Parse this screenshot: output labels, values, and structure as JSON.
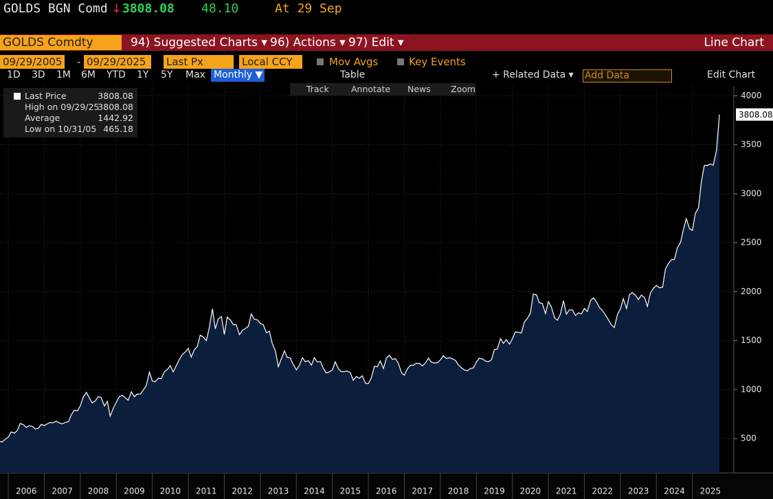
{
  "header": {
    "ticker": "GOLDS BGN Comd",
    "arrow": "↓",
    "price": "3808.08",
    "change": "48.10",
    "time": "At 29 Sep"
  },
  "menu": {
    "security": "GOLDS Comdty",
    "items": [
      "94) Suggested Charts ▾",
      "96) Actions ▾",
      "97) Edit ▾"
    ],
    "chart_type": "Line Chart"
  },
  "settings": {
    "start": "09/29/2005",
    "dash": "-",
    "end": "09/29/2025",
    "field": "Last Px",
    "currency": "Local CCY",
    "mov_avgs": "Mov Avgs",
    "key_events": "Key Events"
  },
  "periods": [
    "1D",
    "3D",
    "1M",
    "6M",
    "YTD",
    "1Y",
    "5Y",
    "Max"
  ],
  "toolbar": {
    "frequency": "Monthly ▼",
    "table": "Table",
    "related": "+ Related Data ▾",
    "add_data": "Add Data",
    "edit_chart": "Edit Chart"
  },
  "tools": [
    "Track",
    "Annotate",
    "News",
    "Zoom"
  ],
  "chart_data": {
    "type": "area",
    "legend": [
      {
        "label": "Last Price",
        "value": "3808.08"
      },
      {
        "label": "High on 09/29/25",
        "value": "3808.08"
      },
      {
        "label": "Average",
        "value": "1442.92"
      },
      {
        "label": "Low on 10/31/05",
        "value": "465.18"
      }
    ],
    "price_tag": "3808.08",
    "xlim": [
      2005.77,
      2026.15
    ],
    "xticks": [
      2006,
      2007,
      2008,
      2009,
      2010,
      2011,
      2012,
      2013,
      2014,
      2015,
      2016,
      2017,
      2018,
      2019,
      2020,
      2021,
      2022,
      2023,
      2024,
      2025
    ],
    "ylim": [
      150,
      4100
    ],
    "yticks": [
      500,
      1000,
      1500,
      2000,
      2500,
      3000,
      3500,
      4000
    ],
    "grid": true,
    "series": [
      {
        "name": "Last Price",
        "color": "#ffffff",
        "fill": "#0b1e3b",
        "x": [
          2005.75,
          2005.83,
          2005.92,
          2006,
          2006.08,
          2006.17,
          2006.25,
          2006.33,
          2006.42,
          2006.5,
          2006.58,
          2006.67,
          2006.75,
          2006.83,
          2006.92,
          2007,
          2007.08,
          2007.17,
          2007.25,
          2007.33,
          2007.42,
          2007.5,
          2007.58,
          2007.67,
          2007.75,
          2007.83,
          2007.92,
          2008,
          2008.08,
          2008.17,
          2008.25,
          2008.33,
          2008.42,
          2008.5,
          2008.58,
          2008.67,
          2008.75,
          2008.83,
          2008.92,
          2009,
          2009.08,
          2009.17,
          2009.25,
          2009.33,
          2009.42,
          2009.5,
          2009.58,
          2009.67,
          2009.75,
          2009.83,
          2009.92,
          2010,
          2010.08,
          2010.17,
          2010.25,
          2010.33,
          2010.42,
          2010.5,
          2010.58,
          2010.67,
          2010.75,
          2010.83,
          2010.92,
          2011,
          2011.08,
          2011.17,
          2011.25,
          2011.33,
          2011.42,
          2011.5,
          2011.58,
          2011.67,
          2011.75,
          2011.83,
          2011.92,
          2012,
          2012.08,
          2012.17,
          2012.25,
          2012.33,
          2012.42,
          2012.5,
          2012.58,
          2012.67,
          2012.75,
          2012.83,
          2012.92,
          2013,
          2013.08,
          2013.17,
          2013.25,
          2013.33,
          2013.42,
          2013.5,
          2013.58,
          2013.67,
          2013.75,
          2013.83,
          2013.92,
          2014,
          2014.08,
          2014.17,
          2014.25,
          2014.33,
          2014.42,
          2014.5,
          2014.58,
          2014.67,
          2014.75,
          2014.83,
          2014.92,
          2015,
          2015.08,
          2015.17,
          2015.25,
          2015.33,
          2015.42,
          2015.5,
          2015.58,
          2015.67,
          2015.75,
          2015.83,
          2015.92,
          2016,
          2016.08,
          2016.17,
          2016.25,
          2016.33,
          2016.42,
          2016.5,
          2016.58,
          2016.67,
          2016.75,
          2016.83,
          2016.92,
          2017,
          2017.08,
          2017.17,
          2017.25,
          2017.33,
          2017.42,
          2017.5,
          2017.58,
          2017.67,
          2017.75,
          2017.83,
          2017.92,
          2018,
          2018.08,
          2018.17,
          2018.25,
          2018.33,
          2018.42,
          2018.5,
          2018.58,
          2018.67,
          2018.75,
          2018.83,
          2018.92,
          2019,
          2019.08,
          2019.17,
          2019.25,
          2019.33,
          2019.42,
          2019.5,
          2019.58,
          2019.67,
          2019.75,
          2019.83,
          2019.92,
          2020,
          2020.08,
          2020.17,
          2020.25,
          2020.33,
          2020.42,
          2020.5,
          2020.58,
          2020.67,
          2020.75,
          2020.83,
          2020.92,
          2021,
          2021.08,
          2021.17,
          2021.25,
          2021.33,
          2021.42,
          2021.5,
          2021.58,
          2021.67,
          2021.75,
          2021.83,
          2021.92,
          2022,
          2022.08,
          2022.17,
          2022.25,
          2022.33,
          2022.42,
          2022.5,
          2022.58,
          2022.67,
          2022.75,
          2022.83,
          2022.92,
          2023,
          2023.08,
          2023.17,
          2023.25,
          2023.33,
          2023.42,
          2023.5,
          2023.58,
          2023.67,
          2023.75,
          2023.83,
          2023.92,
          2024,
          2024.08,
          2024.17,
          2024.25,
          2024.33,
          2024.42,
          2024.5,
          2024.58,
          2024.67,
          2024.75,
          2024.83,
          2024.92,
          2025,
          2025.08,
          2025.17,
          2025.25,
          2025.33,
          2025.42,
          2025.5,
          2025.58,
          2025.67,
          2025.75
        ],
        "values": [
          473,
          465,
          495,
          513,
          568,
          556,
          582,
          654,
          643,
          614,
          632,
          624,
          599,
          604,
          646,
          632,
          650,
          665,
          662,
          678,
          659,
          650,
          665,
          673,
          743,
          789,
          783,
          834,
          923,
          972,
          916,
          864,
          886,
          930,
          918,
          833,
          880,
          730,
          814,
          870,
          928,
          942,
          916,
          891,
          978,
          927,
          954,
          955,
          996,
          1040,
          1179,
          1087,
          1081,
          1116,
          1113,
          1180,
          1207,
          1244,
          1181,
          1247,
          1307,
          1357,
          1386,
          1420,
          1332,
          1410,
          1439,
          1556,
          1536,
          1500,
          1628,
          1825,
          1620,
          1722,
          1746,
          1563,
          1740,
          1710,
          1662,
          1664,
          1561,
          1604,
          1622,
          1648,
          1772,
          1719,
          1712,
          1675,
          1663,
          1580,
          1597,
          1472,
          1393,
          1234,
          1312,
          1396,
          1327,
          1323,
          1253,
          1202,
          1244,
          1326,
          1284,
          1296,
          1250,
          1327,
          1282,
          1287,
          1216,
          1171,
          1182,
          1199,
          1283,
          1212,
          1183,
          1184,
          1190,
          1172,
          1095,
          1134,
          1115,
          1142,
          1065,
          1061,
          1118,
          1238,
          1233,
          1293,
          1215,
          1321,
          1351,
          1309,
          1316,
          1272,
          1173,
          1146,
          1211,
          1249,
          1249,
          1268,
          1268,
          1242,
          1269,
          1322,
          1280,
          1271,
          1275,
          1303,
          1345,
          1318,
          1325,
          1315,
          1298,
          1253,
          1224,
          1201,
          1192,
          1215,
          1222,
          1282,
          1321,
          1313,
          1292,
          1284,
          1305,
          1409,
          1413,
          1520,
          1472,
          1511,
          1464,
          1517,
          1589,
          1585,
          1577,
          1687,
          1730,
          1781,
          1975,
          1967,
          1886,
          1879,
          1776,
          1898,
          1847,
          1734,
          1708,
          1769,
          1907,
          1770,
          1814,
          1814,
          1757,
          1783,
          1774,
          1829,
          1797,
          1909,
          1937,
          1897,
          1837,
          1807,
          1766,
          1711,
          1661,
          1633,
          1768,
          1824,
          1928,
          1827,
          1969,
          1990,
          1962,
          1919,
          1965,
          1940,
          1849,
          1983,
          2036,
          2063,
          2039,
          2044,
          2230,
          2286,
          2327,
          2327,
          2448,
          2503,
          2635,
          2744,
          2643,
          2625,
          2798,
          2858,
          3124,
          3289,
          3289,
          3303,
          3290,
          3448,
          3808.08
        ]
      }
    ]
  }
}
